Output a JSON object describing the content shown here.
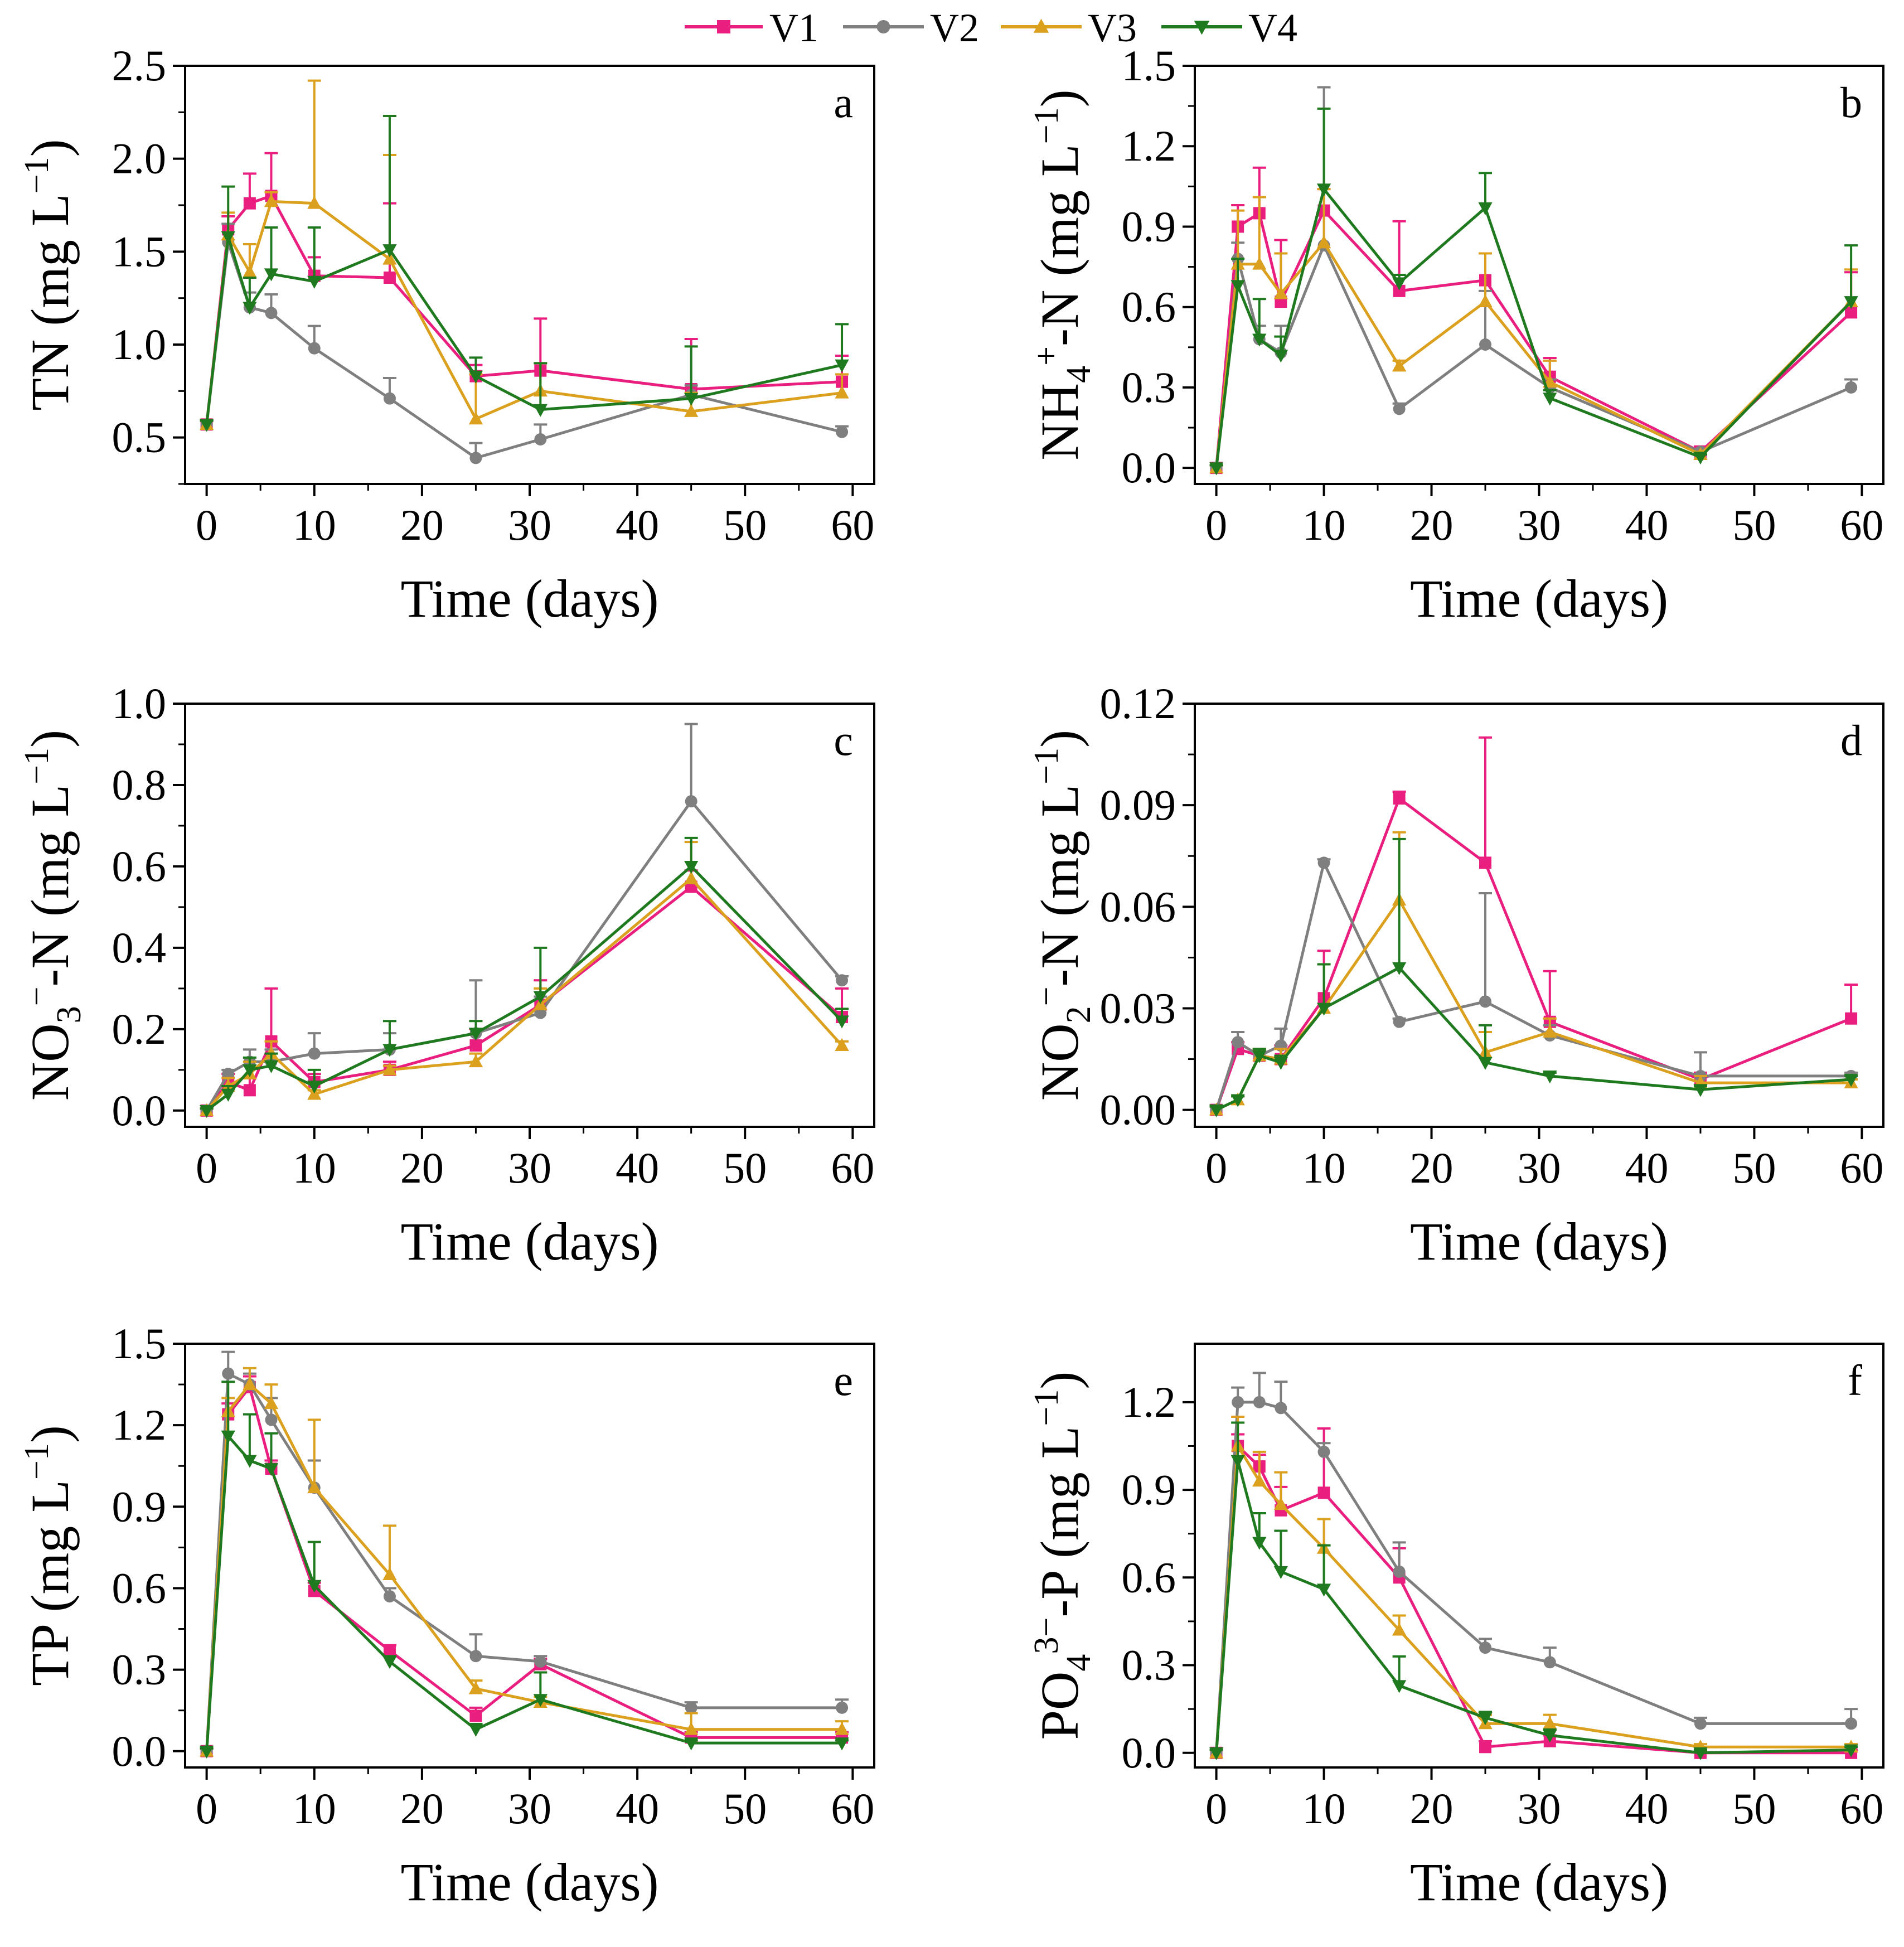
{
  "legend": [
    {
      "name": "V1",
      "color": "#e91e7f",
      "marker": "square"
    },
    {
      "name": "V2",
      "color": "#7f7f7f",
      "marker": "circle"
    },
    {
      "name": "V3",
      "color": "#dba01e",
      "marker": "triangle-up"
    },
    {
      "name": "V4",
      "color": "#1f7a1f",
      "marker": "triangle-down"
    }
  ],
  "chart_data": [
    {
      "type": "line",
      "panel": "a",
      "xlabel": "Time (days)",
      "ylabel": [
        {
          "t": "TN (mg L"
        },
        {
          "t": "−1",
          "sup": true
        },
        {
          "t": ")"
        }
      ],
      "xlim": [
        -2,
        62
      ],
      "ylim": [
        0.25,
        2.5
      ],
      "xticks": [
        0,
        10,
        20,
        30,
        40,
        50,
        60
      ],
      "yticks": [
        0.5,
        1.0,
        1.5,
        2.0,
        2.5
      ],
      "ytick_labels": [
        "0.5",
        "1.0",
        "1.5",
        "2.0",
        "2.5"
      ],
      "x": [
        0,
        2,
        4,
        6,
        10,
        17,
        25,
        31,
        45,
        59
      ],
      "series": [
        {
          "name": "V1",
          "values": [
            0.57,
            1.62,
            1.76,
            1.8,
            1.37,
            1.36,
            0.83,
            0.86,
            0.76,
            0.8
          ],
          "errors": [
            0.02,
            0.07,
            0.16,
            0.23,
            0.1,
            0.4,
            0.06,
            0.28,
            0.27,
            0.14
          ]
        },
        {
          "name": "V2",
          "values": [
            0.57,
            1.55,
            1.2,
            1.17,
            0.98,
            0.71,
            0.39,
            0.49,
            0.73,
            0.53
          ],
          "errors": [
            0.02,
            0.1,
            0.08,
            0.1,
            0.12,
            0.11,
            0.08,
            0.08,
            0.05,
            0.03
          ]
        },
        {
          "name": "V3",
          "values": [
            0.57,
            1.59,
            1.39,
            1.77,
            1.76,
            1.46,
            0.6,
            0.75,
            0.64,
            0.74
          ],
          "errors": [
            0.02,
            0.12,
            0.15,
            0.05,
            0.66,
            0.56,
            0.24,
            0.15,
            0.1,
            0.1
          ]
        },
        {
          "name": "V4",
          "values": [
            0.57,
            1.58,
            1.2,
            1.38,
            1.34,
            1.51,
            0.83,
            0.65,
            0.71,
            0.89
          ],
          "errors": [
            0.02,
            0.27,
            0.16,
            0.25,
            0.29,
            0.72,
            0.1,
            0.25,
            0.28,
            0.22
          ]
        }
      ]
    },
    {
      "type": "line",
      "panel": "b",
      "xlabel": "Time (days)",
      "ylabel": [
        {
          "t": "NH"
        },
        {
          "t": "4",
          "sub": true
        },
        {
          "t": "+",
          "sup": true
        },
        {
          "t": "-N (mg L"
        },
        {
          "t": "−1",
          "sup": true
        },
        {
          "t": ")"
        }
      ],
      "xlim": [
        -2,
        62
      ],
      "ylim": [
        -0.06,
        1.5
      ],
      "xticks": [
        0,
        10,
        20,
        30,
        40,
        50,
        60
      ],
      "yticks": [
        0.0,
        0.3,
        0.6,
        0.9,
        1.2,
        1.5
      ],
      "ytick_labels": [
        "0.0",
        "0.3",
        "0.6",
        "0.9",
        "1.2",
        "1.5"
      ],
      "x": [
        0,
        2,
        4,
        6,
        10,
        17,
        25,
        31,
        45,
        59
      ],
      "series": [
        {
          "name": "V1",
          "values": [
            0.0,
            0.9,
            0.95,
            0.62,
            0.96,
            0.66,
            0.7,
            0.34,
            0.06,
            0.58
          ],
          "errors": [
            0.01,
            0.08,
            0.17,
            0.23,
            0.08,
            0.26,
            0.1,
            0.07,
            0.02,
            0.15
          ]
        },
        {
          "name": "V2",
          "values": [
            0.0,
            0.78,
            0.48,
            0.43,
            0.83,
            0.22,
            0.46,
            0.3,
            0.06,
            0.3
          ],
          "errors": [
            0.01,
            0.06,
            0.05,
            0.1,
            0.59,
            0.02,
            0.2,
            0.03,
            0.01,
            0.03
          ]
        },
        {
          "name": "V3",
          "values": [
            0.0,
            0.76,
            0.76,
            0.65,
            0.84,
            0.38,
            0.62,
            0.32,
            0.05,
            0.62
          ],
          "errors": [
            0.01,
            0.2,
            0.25,
            0.15,
            0.2,
            0.02,
            0.18,
            0.08,
            0.01,
            0.12
          ]
        },
        {
          "name": "V4",
          "values": [
            0.0,
            0.68,
            0.48,
            0.42,
            1.04,
            0.69,
            0.97,
            0.26,
            0.04,
            0.62
          ],
          "errors": [
            0.01,
            0.1,
            0.15,
            0.07,
            0.3,
            0.03,
            0.13,
            0.03,
            0.01,
            0.21
          ]
        }
      ]
    },
    {
      "type": "line",
      "panel": "c",
      "xlabel": "Time (days)",
      "ylabel": [
        {
          "t": "NO"
        },
        {
          "t": "3",
          "sub": true
        },
        {
          "t": "−",
          "sup": true
        },
        {
          "t": "-N (mg L"
        },
        {
          "t": "−1",
          "sup": true
        },
        {
          "t": ")"
        }
      ],
      "xlim": [
        -2,
        62
      ],
      "ylim": [
        -0.04,
        1.0
      ],
      "xticks": [
        0,
        10,
        20,
        30,
        40,
        50,
        60
      ],
      "yticks": [
        0.0,
        0.2,
        0.4,
        0.6,
        0.8,
        1.0
      ],
      "ytick_labels": [
        "0.0",
        "0.2",
        "0.4",
        "0.6",
        "0.8",
        "1.0"
      ],
      "x": [
        0,
        2,
        4,
        6,
        10,
        17,
        25,
        31,
        45,
        59
      ],
      "series": [
        {
          "name": "V1",
          "values": [
            0.0,
            0.07,
            0.05,
            0.17,
            0.07,
            0.1,
            0.16,
            0.26,
            0.55,
            0.23
          ],
          "errors": [
            0.005,
            0.02,
            0.03,
            0.13,
            0.02,
            0.02,
            0.04,
            0.06,
            0.04,
            0.07
          ]
        },
        {
          "name": "V2",
          "values": [
            0.0,
            0.09,
            0.12,
            0.12,
            0.14,
            0.15,
            0.19,
            0.24,
            0.76,
            0.32
          ],
          "errors": [
            0.005,
            0.01,
            0.03,
            0.03,
            0.05,
            0.04,
            0.13,
            0.04,
            0.19,
            0.01
          ]
        },
        {
          "name": "V3",
          "values": [
            0.0,
            0.06,
            0.09,
            0.14,
            0.04,
            0.1,
            0.12,
            0.26,
            0.57,
            0.16
          ],
          "errors": [
            0.005,
            0.02,
            0.03,
            0.03,
            0.01,
            0.01,
            0.02,
            0.04,
            0.09,
            0.01
          ]
        },
        {
          "name": "V4",
          "values": [
            0.0,
            0.04,
            0.1,
            0.11,
            0.06,
            0.15,
            0.19,
            0.28,
            0.6,
            0.22
          ],
          "errors": [
            0.005,
            0.02,
            0.03,
            0.03,
            0.04,
            0.07,
            0.03,
            0.12,
            0.07,
            0.03
          ]
        }
      ]
    },
    {
      "type": "line",
      "panel": "d",
      "xlabel": "Time (days)",
      "ylabel": [
        {
          "t": "NO"
        },
        {
          "t": "2",
          "sub": true
        },
        {
          "t": "−",
          "sup": true
        },
        {
          "t": "-N (mg L"
        },
        {
          "t": "−1",
          "sup": true
        },
        {
          "t": ")"
        }
      ],
      "xlim": [
        -2,
        62
      ],
      "ylim": [
        -0.005,
        0.12
      ],
      "xticks": [
        0,
        10,
        20,
        30,
        40,
        50,
        60
      ],
      "yticks": [
        0.0,
        0.03,
        0.06,
        0.09,
        0.12
      ],
      "ytick_labels": [
        "0.00",
        "0.03",
        "0.06",
        "0.09",
        "0.12"
      ],
      "x": [
        0,
        2,
        4,
        6,
        10,
        17,
        25,
        31,
        45,
        59
      ],
      "series": [
        {
          "name": "V1",
          "values": [
            0.0,
            0.018,
            0.016,
            0.015,
            0.033,
            0.092,
            0.073,
            0.026,
            0.009,
            0.027
          ],
          "errors": [
            0.001,
            0.002,
            0.002,
            0.004,
            0.014,
            0.002,
            0.037,
            0.015,
            0.002,
            0.01
          ]
        },
        {
          "name": "V2",
          "values": [
            0.0,
            0.02,
            0.016,
            0.019,
            0.073,
            0.026,
            0.032,
            0.022,
            0.01,
            0.01
          ],
          "errors": [
            0.001,
            0.003,
            0.002,
            0.005,
            0.001,
            0.001,
            0.032,
            0.003,
            0.007,
            0.001
          ]
        },
        {
          "name": "V3",
          "values": [
            0.0,
            0.003,
            0.016,
            0.015,
            0.03,
            0.062,
            0.017,
            0.023,
            0.008,
            0.008
          ],
          "errors": [
            0.001,
            0.001,
            0.002,
            0.003,
            0.013,
            0.02,
            0.006,
            0.004,
            0.002,
            0.001
          ]
        },
        {
          "name": "V4",
          "values": [
            0.0,
            0.003,
            0.016,
            0.014,
            0.03,
            0.042,
            0.014,
            0.01,
            0.006,
            0.009
          ],
          "errors": [
            0.001,
            0.001,
            0.002,
            0.002,
            0.013,
            0.038,
            0.011,
            0.001,
            0.001,
            0.001
          ]
        }
      ]
    },
    {
      "type": "line",
      "panel": "e",
      "xlabel": "Time (days)",
      "ylabel": [
        {
          "t": "TP (mg L"
        },
        {
          "t": "−1",
          "sup": true
        },
        {
          "t": ")"
        }
      ],
      "xlim": [
        -2,
        62
      ],
      "ylim": [
        -0.06,
        1.5
      ],
      "xticks": [
        0,
        10,
        20,
        30,
        40,
        50,
        60
      ],
      "yticks": [
        0.0,
        0.3,
        0.6,
        0.9,
        1.2,
        1.5
      ],
      "ytick_labels": [
        "0.0",
        "0.3",
        "0.6",
        "0.9",
        "1.2",
        "1.5"
      ],
      "x": [
        0,
        2,
        4,
        6,
        10,
        17,
        25,
        31,
        45,
        59
      ],
      "series": [
        {
          "name": "V1",
          "values": [
            0.0,
            1.24,
            1.34,
            1.04,
            0.59,
            0.37,
            0.13,
            0.32,
            0.05,
            0.05
          ],
          "errors": [
            0.01,
            0.04,
            0.04,
            0.03,
            0.03,
            0.02,
            0.03,
            0.02,
            0.02,
            0.02
          ]
        },
        {
          "name": "V2",
          "values": [
            0.0,
            1.39,
            1.35,
            1.22,
            0.97,
            0.57,
            0.35,
            0.33,
            0.16,
            0.16
          ],
          "errors": [
            0.01,
            0.08,
            0.04,
            0.08,
            0.1,
            0.03,
            0.08,
            0.02,
            0.02,
            0.03
          ]
        },
        {
          "name": "V3",
          "values": [
            0.0,
            1.25,
            1.35,
            1.28,
            0.97,
            0.65,
            0.23,
            0.18,
            0.08,
            0.08
          ],
          "errors": [
            0.01,
            0.05,
            0.06,
            0.07,
            0.25,
            0.18,
            0.03,
            0.02,
            0.06,
            0.03
          ]
        },
        {
          "name": "V4",
          "values": [
            0.0,
            1.16,
            1.07,
            1.04,
            0.61,
            0.33,
            0.08,
            0.19,
            0.03,
            0.03
          ],
          "errors": [
            0.01,
            0.2,
            0.17,
            0.13,
            0.16,
            0.02,
            0.02,
            0.1,
            0.01,
            0.01
          ]
        }
      ]
    },
    {
      "type": "line",
      "panel": "f",
      "xlabel": "Time (days)",
      "ylabel": [
        {
          "t": "PO"
        },
        {
          "t": "4",
          "sub": true
        },
        {
          "t": "3−",
          "sup": true
        },
        {
          "t": "-P (mg L"
        },
        {
          "t": "−1",
          "sup": true
        },
        {
          "t": ")"
        }
      ],
      "xlim": [
        -2,
        62
      ],
      "ylim": [
        -0.05,
        1.4
      ],
      "xticks": [
        0,
        10,
        20,
        30,
        40,
        50,
        60
      ],
      "yticks": [
        0.0,
        0.3,
        0.6,
        0.9,
        1.2
      ],
      "ytick_labels": [
        "0.0",
        "0.3",
        "0.6",
        "0.9",
        "1.2"
      ],
      "x": [
        0,
        2,
        4,
        6,
        10,
        17,
        25,
        31,
        45,
        59
      ],
      "series": [
        {
          "name": "V1",
          "values": [
            0.0,
            1.05,
            0.98,
            0.83,
            0.89,
            0.6,
            0.02,
            0.04,
            0.0,
            0.0
          ],
          "errors": [
            0.01,
            0.04,
            0.04,
            0.08,
            0.22,
            0.1,
            0.02,
            0.02,
            0.01,
            0.01
          ]
        },
        {
          "name": "V2",
          "values": [
            0.0,
            1.2,
            1.2,
            1.18,
            1.03,
            0.62,
            0.36,
            0.31,
            0.1,
            0.1
          ],
          "errors": [
            0.01,
            0.05,
            0.1,
            0.09,
            0.03,
            0.1,
            0.03,
            0.05,
            0.02,
            0.05
          ]
        },
        {
          "name": "V3",
          "values": [
            0.0,
            1.05,
            0.93,
            0.85,
            0.7,
            0.42,
            0.1,
            0.1,
            0.02,
            0.02
          ],
          "errors": [
            0.01,
            0.1,
            0.1,
            0.11,
            0.1,
            0.05,
            0.03,
            0.03,
            0.01,
            0.01
          ]
        },
        {
          "name": "V4",
          "values": [
            0.0,
            1.0,
            0.72,
            0.62,
            0.56,
            0.23,
            0.12,
            0.06,
            0.0,
            0.01
          ],
          "errors": [
            0.01,
            0.13,
            0.1,
            0.14,
            0.15,
            0.1,
            0.02,
            0.02,
            0.01,
            0.01
          ]
        }
      ]
    }
  ]
}
